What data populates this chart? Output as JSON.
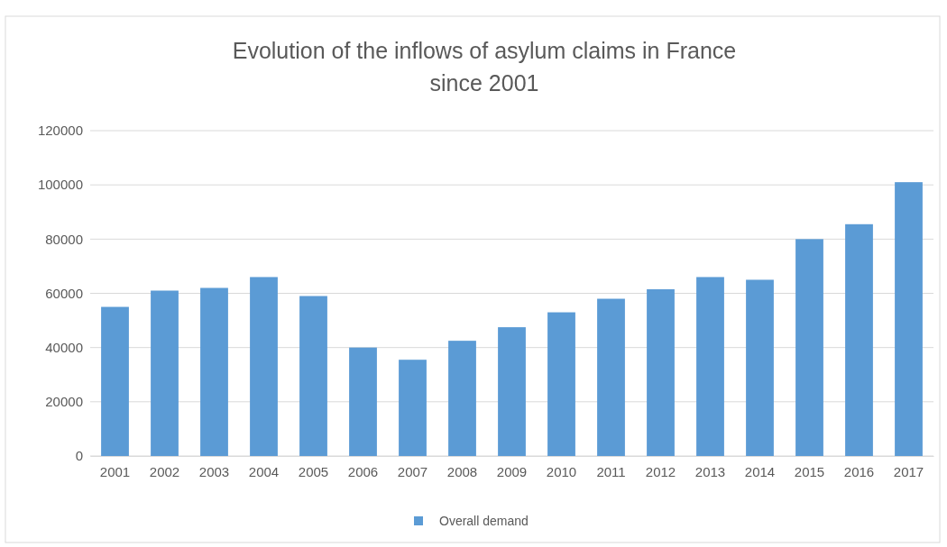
{
  "chart_data": {
    "type": "bar",
    "title": "Evolution of the inflows of asylum claims in France since 2001",
    "categories": [
      "2001",
      "2002",
      "2003",
      "2004",
      "2005",
      "2006",
      "2007",
      "2008",
      "2009",
      "2010",
      "2011",
      "2012",
      "2013",
      "2014",
      "2015",
      "2016",
      "2017"
    ],
    "series": [
      {
        "name": "Overall demand",
        "color": "#5b9bd5",
        "values": [
          55000,
          61000,
          62000,
          66000,
          59000,
          40000,
          35500,
          42500,
          47500,
          53000,
          58000,
          61500,
          66000,
          65000,
          80000,
          85500,
          101000
        ]
      }
    ],
    "ylim": [
      0,
      120000
    ],
    "yticks": [
      0,
      20000,
      40000,
      60000,
      80000,
      100000,
      120000
    ],
    "grid": "y",
    "legend": "bottom"
  }
}
